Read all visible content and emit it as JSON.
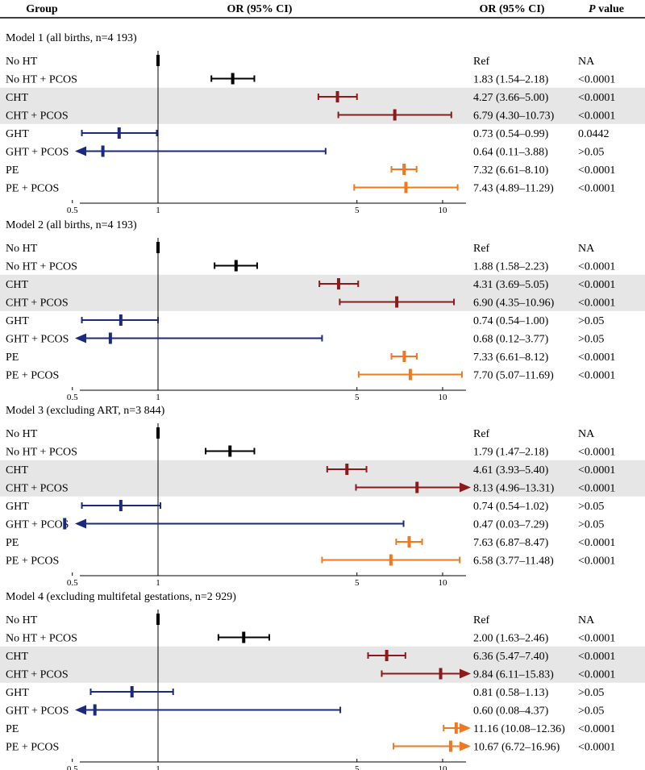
{
  "header": {
    "group": "Group",
    "or_plot": "OR (95% CI)",
    "or_col": "OR (95% CI)",
    "p_letter": "P",
    "p_suffix": " value"
  },
  "colors": {
    "black": "#000000",
    "darkred": "#8b1a1a",
    "navy": "#1b2a7a",
    "orange": "#f07820",
    "shade": "#e6e6e6"
  },
  "chart_data": {
    "type": "forest",
    "xscale": "log",
    "xlim": [
      0.5,
      12
    ],
    "xticks": [
      0.5,
      1,
      5,
      10
    ],
    "xtick_labels": [
      "0.5",
      "1",
      "5",
      "10"
    ],
    "reference_line": 1,
    "panels": [
      {
        "title": "Model 1 (all births, n=4 193)",
        "rows": [
          {
            "group": "No HT",
            "or": 1,
            "lo": null,
            "hi": null,
            "or_text": "Ref",
            "p": "NA",
            "color": "black",
            "ref": true
          },
          {
            "group": "No HT + PCOS",
            "or": 1.83,
            "lo": 1.54,
            "hi": 2.18,
            "or_text": "1.83 (1.54–2.18)",
            "p": "<0.0001",
            "color": "black"
          },
          {
            "group": "CHT",
            "or": 4.27,
            "lo": 3.66,
            "hi": 5.0,
            "or_text": "4.27 (3.66–5.00)",
            "p": "<0.0001",
            "color": "darkred",
            "shaded": true
          },
          {
            "group": "CHT + PCOS",
            "or": 6.79,
            "lo": 4.3,
            "hi": 10.73,
            "or_text": "6.79 (4.30–10.73)",
            "p": "<0.0001",
            "color": "darkred",
            "shaded": true
          },
          {
            "group": "GHT",
            "or": 0.73,
            "lo": 0.54,
            "hi": 0.99,
            "or_text": "0.73 (0.54–0.99)",
            "p": "0.0442",
            "color": "navy"
          },
          {
            "group": "GHT + PCOS",
            "or": 0.64,
            "lo": 0.11,
            "hi": 3.88,
            "or_text": "0.64 (0.11–3.88)",
            "p": ">0.05",
            "color": "navy"
          },
          {
            "group": "PE",
            "or": 7.32,
            "lo": 6.61,
            "hi": 8.1,
            "or_text": "7.32 (6.61–8.10)",
            "p": "<0.0001",
            "color": "orange"
          },
          {
            "group": "PE + PCOS",
            "or": 7.43,
            "lo": 4.89,
            "hi": 11.29,
            "or_text": "7.43 (4.89–11.29)",
            "p": "<0.0001",
            "color": "orange"
          }
        ]
      },
      {
        "title": "Model 2 (all births, n=4 193)",
        "rows": [
          {
            "group": "No HT",
            "or": 1,
            "lo": null,
            "hi": null,
            "or_text": "Ref",
            "p": "NA",
            "color": "black",
            "ref": true
          },
          {
            "group": "No HT + PCOS",
            "or": 1.88,
            "lo": 1.58,
            "hi": 2.23,
            "or_text": "1.88 (1.58–2.23)",
            "p": "<0.0001",
            "color": "black"
          },
          {
            "group": "CHT",
            "or": 4.31,
            "lo": 3.69,
            "hi": 5.05,
            "or_text": "4.31 (3.69–5.05)",
            "p": "<0.0001",
            "color": "darkred",
            "shaded": true
          },
          {
            "group": "CHT + PCOS",
            "or": 6.9,
            "lo": 4.35,
            "hi": 10.96,
            "or_text": "6.90 (4.35–10.96)",
            "p": "<0.0001",
            "color": "darkred",
            "shaded": true
          },
          {
            "group": "GHT",
            "or": 0.74,
            "lo": 0.54,
            "hi": 1.0,
            "or_text": "0.74 (0.54–1.00)",
            "p": ">0.05",
            "color": "navy"
          },
          {
            "group": "GHT + PCOS",
            "or": 0.68,
            "lo": 0.12,
            "hi": 3.77,
            "or_text": "0.68 (0.12–3.77)",
            "p": ">0.05",
            "color": "navy"
          },
          {
            "group": "PE",
            "or": 7.33,
            "lo": 6.61,
            "hi": 8.12,
            "or_text": "7.33 (6.61–8.12)",
            "p": "<0.0001",
            "color": "orange"
          },
          {
            "group": "PE + PCOS",
            "or": 7.7,
            "lo": 5.07,
            "hi": 11.69,
            "or_text": "7.70 (5.07–11.69)",
            "p": "<0.0001",
            "color": "orange"
          }
        ]
      },
      {
        "title": "Model 3 (excluding ART, n=3 844)",
        "rows": [
          {
            "group": "No HT",
            "or": 1,
            "lo": null,
            "hi": null,
            "or_text": "Ref",
            "p": "NA",
            "color": "black",
            "ref": true
          },
          {
            "group": "No HT + PCOS",
            "or": 1.79,
            "lo": 1.47,
            "hi": 2.18,
            "or_text": "1.79 (1.47–2.18)",
            "p": "<0.0001",
            "color": "black"
          },
          {
            "group": "CHT",
            "or": 4.61,
            "lo": 3.93,
            "hi": 5.4,
            "or_text": "4.61 (3.93–5.40)",
            "p": "<0.0001",
            "color": "darkred",
            "shaded": true
          },
          {
            "group": "CHT + PCOS",
            "or": 8.13,
            "lo": 4.96,
            "hi": 13.31,
            "or_text": "8.13 (4.96–13.31)",
            "p": "<0.0001",
            "color": "darkred",
            "shaded": true
          },
          {
            "group": "GHT",
            "or": 0.74,
            "lo": 0.54,
            "hi": 1.02,
            "or_text": "0.74 (0.54–1.02)",
            "p": ">0.05",
            "color": "navy"
          },
          {
            "group": "GHT + PCOS",
            "or": 0.47,
            "lo": 0.03,
            "hi": 7.29,
            "or_text": "0.47 (0.03–7.29)",
            "p": ">0.05",
            "color": "navy"
          },
          {
            "group": "PE",
            "or": 7.63,
            "lo": 6.87,
            "hi": 8.47,
            "or_text": "7.63 (6.87–8.47)",
            "p": "<0.0001",
            "color": "orange"
          },
          {
            "group": "PE + PCOS",
            "or": 6.58,
            "lo": 3.77,
            "hi": 11.48,
            "or_text": "6.58 (3.77–11.48)",
            "p": "<0.0001",
            "color": "orange"
          }
        ]
      },
      {
        "title": "Model 4 (excluding multifetal gestations, n=2 929)",
        "rows": [
          {
            "group": "No HT",
            "or": 1,
            "lo": null,
            "hi": null,
            "or_text": "Ref",
            "p": "NA",
            "color": "black",
            "ref": true
          },
          {
            "group": "No HT + PCOS",
            "or": 2.0,
            "lo": 1.63,
            "hi": 2.46,
            "or_text": "2.00 (1.63–2.46)",
            "p": "<0.0001",
            "color": "black"
          },
          {
            "group": "CHT",
            "or": 6.36,
            "lo": 5.47,
            "hi": 7.4,
            "or_text": "6.36 (5.47–7.40)",
            "p": "<0.0001",
            "color": "darkred",
            "shaded": true
          },
          {
            "group": "CHT + PCOS",
            "or": 9.84,
            "lo": 6.11,
            "hi": 15.83,
            "or_text": "9.84 (6.11–15.83)",
            "p": "<0.0001",
            "color": "darkred",
            "shaded": true
          },
          {
            "group": "GHT",
            "or": 0.81,
            "lo": 0.58,
            "hi": 1.13,
            "or_text": "0.81 (0.58–1.13)",
            "p": ">0.05",
            "color": "navy"
          },
          {
            "group": "GHT + PCOS",
            "or": 0.6,
            "lo": 0.08,
            "hi": 4.37,
            "or_text": "0.60 (0.08–4.37)",
            "p": ">0.05",
            "color": "navy"
          },
          {
            "group": "PE",
            "or": 11.16,
            "lo": 10.08,
            "hi": 12.36,
            "or_text": "11.16 (10.08–12.36)",
            "p": "<0.0001",
            "color": "orange"
          },
          {
            "group": "PE + PCOS",
            "or": 10.67,
            "lo": 6.72,
            "hi": 16.96,
            "or_text": "10.67 (6.72–16.96)",
            "p": "<0.0001",
            "color": "orange"
          }
        ]
      }
    ]
  }
}
